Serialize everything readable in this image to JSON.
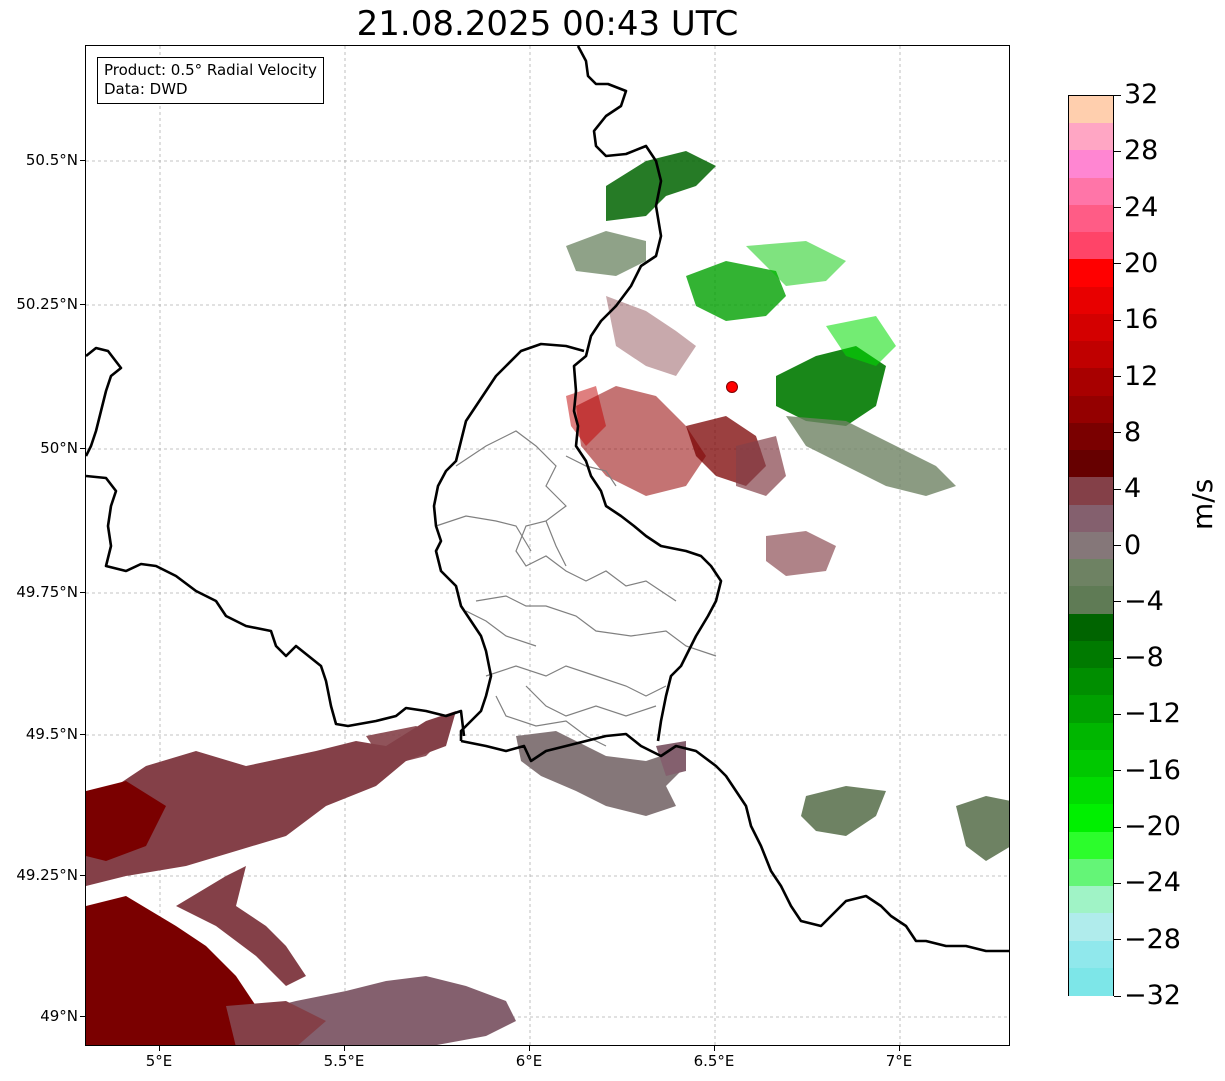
{
  "title": "21.08.2025 00:43 UTC",
  "info": {
    "product": "Product: 0.5° Radial Velocity",
    "data_source": "Data: DWD"
  },
  "axes": {
    "lon_labels": [
      "5°E",
      "5.5°E",
      "6°E",
      "6.5°E",
      "7°E"
    ],
    "lat_labels": [
      "50.5°N",
      "50.25°N",
      "50°N",
      "49.75°N",
      "49.5°N",
      "49.25°N",
      "49°N"
    ]
  },
  "radar_site": {
    "lat": 50.11,
    "lon": 6.55
  },
  "colorbar": {
    "unit": "m/s",
    "min": -32,
    "max": 32,
    "tick_labels": [
      "32",
      "28",
      "24",
      "20",
      "16",
      "12",
      "8",
      "4",
      "0",
      "−4",
      "−8",
      "−12",
      "−16",
      "−20",
      "−24",
      "−28",
      "−32"
    ],
    "colors_top_to_bottom": [
      "#ffcfae",
      "#ffa6c4",
      "#ff86d2",
      "#ff75a8",
      "#ff5c86",
      "#ff4468",
      "#ff0000",
      "#e80000",
      "#d40000",
      "#c00000",
      "#a80000",
      "#940000",
      "#7a0000",
      "#660000",
      "#844048",
      "#84606e",
      "#857779",
      "#6e8263",
      "#5f7b55",
      "#006400",
      "#007a00",
      "#008e00",
      "#00a000",
      "#00b600",
      "#00c800",
      "#00dc00",
      "#00f000",
      "#2cfd2c",
      "#64f577",
      "#a0f3c6",
      "#b0ecec",
      "#90e8ec",
      "#7de6e8"
    ]
  },
  "map_colors": {
    "border_national": "#000000",
    "border_regional": "#808080",
    "grid": "#b0b0b0"
  }
}
